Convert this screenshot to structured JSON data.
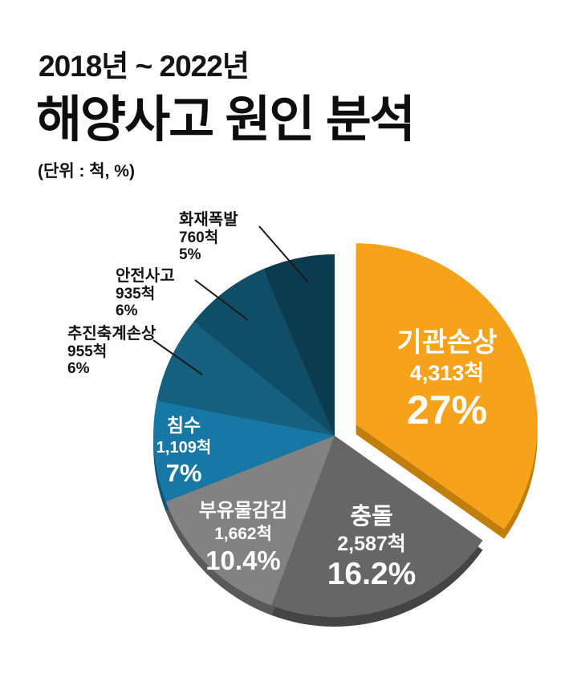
{
  "header": {
    "title_line1": "2018년 ~ 2022년",
    "title_line2": "해양사고 원인 분석",
    "unit_note": "(단위 : 척, %)"
  },
  "chart_data": {
    "type": "pie",
    "title": "2018년 ~ 2022년 해양사고 원인 분석",
    "unit": "척, %",
    "start_angle_deg": 0,
    "direction": "clockwise",
    "legend_position": "labels-on-slices",
    "slices": [
      {
        "id": "engine-damage",
        "label": "기관손상",
        "count_label": "4,313척",
        "count": 4313,
        "percent": 27,
        "percent_label": "27%",
        "color": "#F7A21B",
        "depth_color": "#C07E0E",
        "exploded": true,
        "label_placement": "inside"
      },
      {
        "id": "collision",
        "label": "충돌",
        "count_label": "2,587척",
        "count": 2587,
        "percent": 16.2,
        "percent_label": "16.2%",
        "color": "#666666",
        "depth_color": "#444444",
        "exploded": false,
        "label_placement": "inside"
      },
      {
        "id": "entanglement",
        "label": "부유물감김",
        "count_label": "1,662척",
        "count": 1662,
        "percent": 10.4,
        "percent_label": "10.4%",
        "color": "#828282",
        "depth_color": "#595959",
        "exploded": false,
        "label_placement": "inside"
      },
      {
        "id": "flooding",
        "label": "침수",
        "count_label": "1,109척",
        "count": 1109,
        "percent": 7,
        "percent_label": "7%",
        "color": "#1878A5",
        "depth_color": "#10536F",
        "exploded": false,
        "label_placement": "inside"
      },
      {
        "id": "shaft-damage",
        "label": "추진축계손상",
        "count_label": "955척",
        "count": 955,
        "percent": 6,
        "percent_label": "6%",
        "color": "#15607F",
        "depth_color": "#0D4258",
        "exploded": false,
        "label_placement": "outside"
      },
      {
        "id": "safety-accident",
        "label": "안전사고",
        "count_label": "935척",
        "count": 935,
        "percent": 6,
        "percent_label": "6%",
        "color": "#104D66",
        "depth_color": "#0A3547",
        "exploded": false,
        "label_placement": "outside"
      },
      {
        "id": "fire-explosion",
        "label": "화재폭발",
        "count_label": "760척",
        "count": 760,
        "percent": 5,
        "percent_label": "5%",
        "color": "#0C3A4F",
        "depth_color": "#062735",
        "exploded": false,
        "label_placement": "outside"
      }
    ]
  }
}
